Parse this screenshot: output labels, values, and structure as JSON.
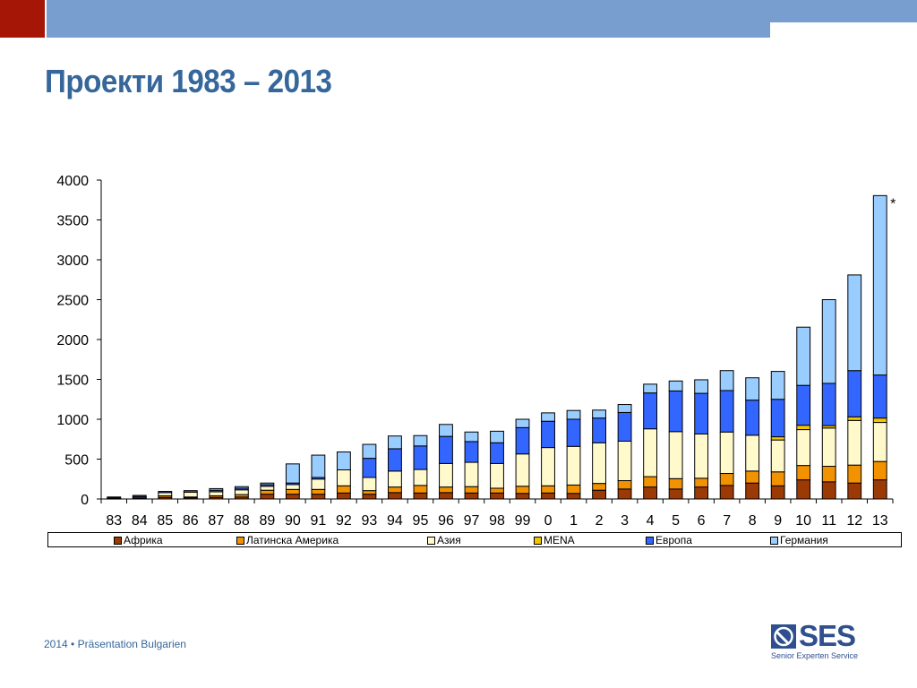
{
  "slide": {
    "title": "Проекти  1983 – 2013",
    "footer": "2014 • Präsentation Bulgarien",
    "logo_text": "SES",
    "logo_subtext": "Senior Experten Service",
    "accent_red": "#a51606",
    "accent_blue": "#789dcf",
    "title_color": "#36679a"
  },
  "chart_data": {
    "type": "bar",
    "stacked": true,
    "title": "",
    "xlabel": "",
    "ylabel": "",
    "ylim": [
      0,
      4000
    ],
    "yticks": [
      0,
      500,
      1000,
      1500,
      2000,
      2500,
      3000,
      3500,
      4000
    ],
    "categories": [
      "83",
      "84",
      "85",
      "86",
      "87",
      "88",
      "89",
      "90",
      "91",
      "92",
      "93",
      "94",
      "95",
      "96",
      "97",
      "98",
      "99",
      "0",
      "1",
      "2",
      "3",
      "4",
      "5",
      "6",
      "7",
      "8",
      "9",
      "10",
      "11",
      "12",
      "13"
    ],
    "annotation": "*",
    "legend_position": "bottom",
    "series": [
      {
        "name": "Африка",
        "color": "#9c3a06",
        "values": [
          5,
          10,
          20,
          15,
          20,
          25,
          60,
          60,
          60,
          75,
          60,
          80,
          75,
          80,
          75,
          75,
          70,
          75,
          70,
          110,
          125,
          150,
          125,
          150,
          170,
          200,
          165,
          240,
          215,
          200,
          240
        ]
      },
      {
        "name": "Латинска Америка",
        "color": "#f39200",
        "values": [
          5,
          5,
          20,
          10,
          20,
          30,
          50,
          60,
          60,
          90,
          45,
          70,
          95,
          70,
          80,
          60,
          90,
          90,
          105,
          85,
          105,
          130,
          130,
          110,
          150,
          150,
          175,
          180,
          195,
          225,
          230
        ]
      },
      {
        "name": "Азия",
        "color": "#fff9cc",
        "values": [
          10,
          15,
          40,
          60,
          50,
          60,
          50,
          60,
          130,
          200,
          165,
          200,
          200,
          295,
          305,
          310,
          405,
          480,
          485,
          510,
          495,
          600,
          590,
          555,
          520,
          450,
          400,
          450,
          480,
          560,
          490
        ]
      },
      {
        "name": "MENA",
        "color": "#f5c400",
        "values": [
          0,
          0,
          0,
          0,
          0,
          0,
          0,
          0,
          0,
          0,
          0,
          0,
          0,
          0,
          0,
          0,
          0,
          0,
          0,
          0,
          0,
          0,
          0,
          0,
          0,
          0,
          40,
          55,
          30,
          45,
          55
        ]
      },
      {
        "name": "Европа",
        "color": "#3366ff",
        "values": [
          5,
          15,
          15,
          20,
          20,
          20,
          20,
          20,
          20,
          0,
          240,
          280,
          295,
          340,
          260,
          260,
          330,
          330,
          340,
          310,
          360,
          450,
          510,
          510,
          520,
          440,
          470,
          500,
          530,
          580,
          540
        ]
      },
      {
        "name": "Германия",
        "color": "#99ccff",
        "values": [
          0,
          0,
          0,
          0,
          20,
          20,
          20,
          240,
          280,
          225,
          175,
          160,
          130,
          150,
          120,
          145,
          105,
          105,
          110,
          100,
          100,
          110,
          125,
          170,
          250,
          280,
          350,
          730,
          1050,
          1200,
          2250
        ]
      }
    ]
  }
}
